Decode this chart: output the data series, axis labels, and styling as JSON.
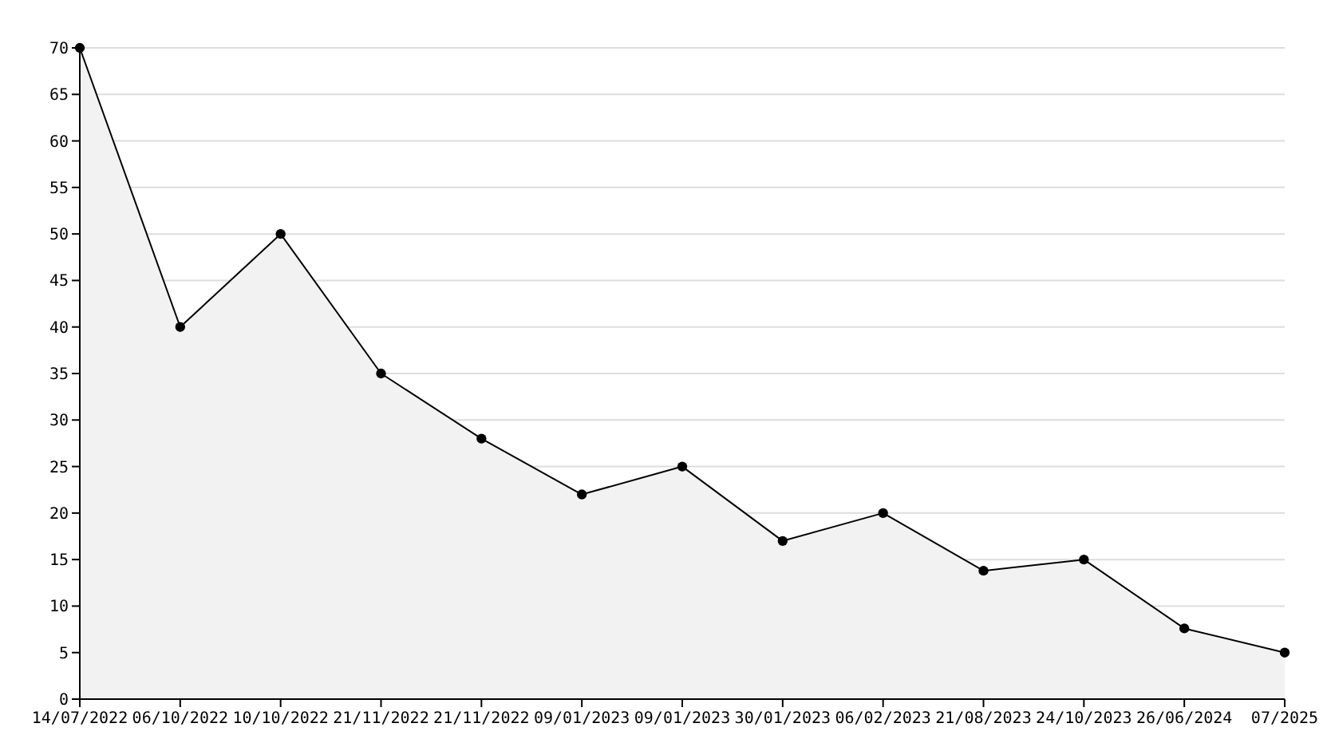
{
  "chart_data": {
    "type": "area",
    "categories": [
      "14/07/2022",
      "06/10/2022",
      "10/10/2022",
      "21/11/2022",
      "21/11/2022",
      "09/01/2023",
      "09/01/2023",
      "30/01/2023",
      "06/02/2023",
      "21/08/2023",
      "24/10/2023",
      "26/06/2024",
      "07/2025"
    ],
    "series": [
      {
        "color": "#000000",
        "values": [
          70,
          40,
          50,
          35,
          28,
          22,
          25,
          17,
          20,
          13.8,
          15,
          7.6,
          5
        ]
      }
    ],
    "ylim": [
      0,
      70
    ],
    "yticks": [
      0,
      5,
      10,
      15,
      20,
      25,
      30,
      35,
      40,
      45,
      50,
      55,
      60,
      65,
      70
    ],
    "grid": "y",
    "marker": "circle",
    "line_style": "solid"
  }
}
